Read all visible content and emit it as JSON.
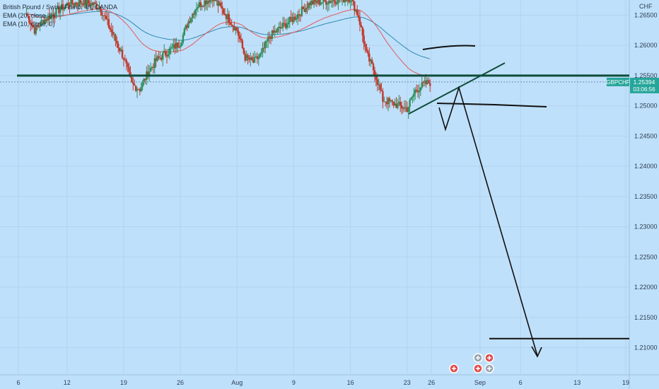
{
  "header": {
    "title": "British Pound / Swiss Franc, 4h, OANDA",
    "ema20": "EMA (20, close, 0)",
    "ema10": "EMA (10, close, 0)",
    "currency": "CHF"
  },
  "price_tag": {
    "symbol": "GBPCHF",
    "price": "1.25394",
    "countdown": "03:06:56"
  },
  "colors": {
    "background": "#bfe0fb",
    "up": "#2f8f5b",
    "down": "#c0392b",
    "ema20": "#2e8bb0",
    "ema10": "#e45a5a",
    "level": "#0e4d3a",
    "tag": "#26a69a"
  },
  "chart_data": {
    "type": "candlestick",
    "title": "British Pound / Swiss Franc, 4h, OANDA",
    "y_tick_labels": [
      "1.26500",
      "1.26000",
      "1.25500",
      "1.25000",
      "1.24500",
      "1.24000",
      "1.23500",
      "1.23000",
      "1.22500",
      "1.22000",
      "1.21500",
      "1.21000"
    ],
    "y_ticks": [
      1.265,
      1.26,
      1.255,
      1.25,
      1.245,
      1.24,
      1.235,
      1.23,
      1.225,
      1.22,
      1.215,
      1.21
    ],
    "ylim": [
      1.2055,
      1.2675
    ],
    "x_tick_labels": [
      "6",
      "12",
      "19",
      "26",
      "Aug",
      "9",
      "16",
      "23",
      "26",
      "Sep",
      "6",
      "13",
      "19"
    ],
    "x_tick_dates": [
      "2021-07-06",
      "2021-07-12",
      "2021-07-19",
      "2021-07-26",
      "2021-08-02",
      "2021-08-09",
      "2021-08-16",
      "2021-08-23",
      "2021-08-26",
      "2021-09-01",
      "2021-09-06",
      "2021-09-13",
      "2021-09-19"
    ],
    "close_series": [
      [
        "2021-07-07",
        1.2652
      ],
      [
        "2021-07-08",
        1.2625
      ],
      [
        "2021-07-09",
        1.264
      ],
      [
        "2021-07-12",
        1.2668
      ],
      [
        "2021-07-14",
        1.2672
      ],
      [
        "2021-07-16",
        1.2665
      ],
      [
        "2021-07-19",
        1.258
      ],
      [
        "2021-07-20",
        1.2535
      ],
      [
        "2021-07-21",
        1.2528
      ],
      [
        "2021-07-22",
        1.2555
      ],
      [
        "2021-07-23",
        1.2575
      ],
      [
        "2021-07-26",
        1.2605
      ],
      [
        "2021-07-27",
        1.264
      ],
      [
        "2021-07-28",
        1.2665
      ],
      [
        "2021-07-30",
        1.268
      ],
      [
        "2021-08-02",
        1.2625
      ],
      [
        "2021-08-03",
        1.258
      ],
      [
        "2021-08-04",
        1.2572
      ],
      [
        "2021-08-05",
        1.2585
      ],
      [
        "2021-08-06",
        1.2615
      ],
      [
        "2021-08-09",
        1.2645
      ],
      [
        "2021-08-11",
        1.267
      ],
      [
        "2021-08-16",
        1.2678
      ],
      [
        "2021-08-17",
        1.2648
      ],
      [
        "2021-08-18",
        1.2585
      ],
      [
        "2021-08-19",
        1.2555
      ],
      [
        "2021-08-20",
        1.251
      ],
      [
        "2021-08-23",
        1.2495
      ],
      [
        "2021-08-24",
        1.2525
      ],
      [
        "2021-08-25",
        1.2535
      ],
      [
        "2021-08-26",
        1.25394
      ]
    ],
    "annotations": {
      "horizontal_level": 1.255,
      "price_line": 1.25394,
      "target_level": 1.2115,
      "support_line": 1.2488
    }
  }
}
